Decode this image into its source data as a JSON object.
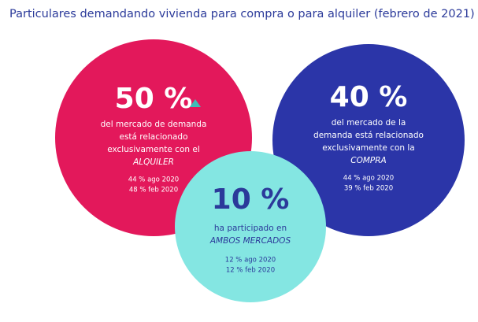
{
  "title": "Particulares demandando vivienda para compra o para alquiler (febrero de 2021)",
  "title_color": "#2b3a9a",
  "circles": [
    {
      "value": "50 %",
      "description": [
        "del mercado de demanda",
        "está relacionado",
        "exclusivamente con el"
      ],
      "emphasis": "ALQUILER",
      "history": [
        "44 % ago 2020",
        "48 % feb 2020"
      ],
      "color": "#e3185b",
      "text_color": "#ffffff"
    },
    {
      "value": "40 %",
      "description": [
        "del mercado de la",
        "demanda está relacionado",
        "exclusivamente con la"
      ],
      "emphasis": "COMPRA",
      "history": [
        "44 % ago 2020",
        "39 % feb 2020"
      ],
      "color": "#2b35a8",
      "text_color": "#ffffff"
    },
    {
      "value": "10 %",
      "description": [
        "ha participado en"
      ],
      "emphasis": "AMBOS MERCADOS",
      "history": [
        "12 % ago 2020",
        "12 % feb 2020"
      ],
      "color": "#84e6e2",
      "text_color": "#2b3a9a"
    }
  ]
}
